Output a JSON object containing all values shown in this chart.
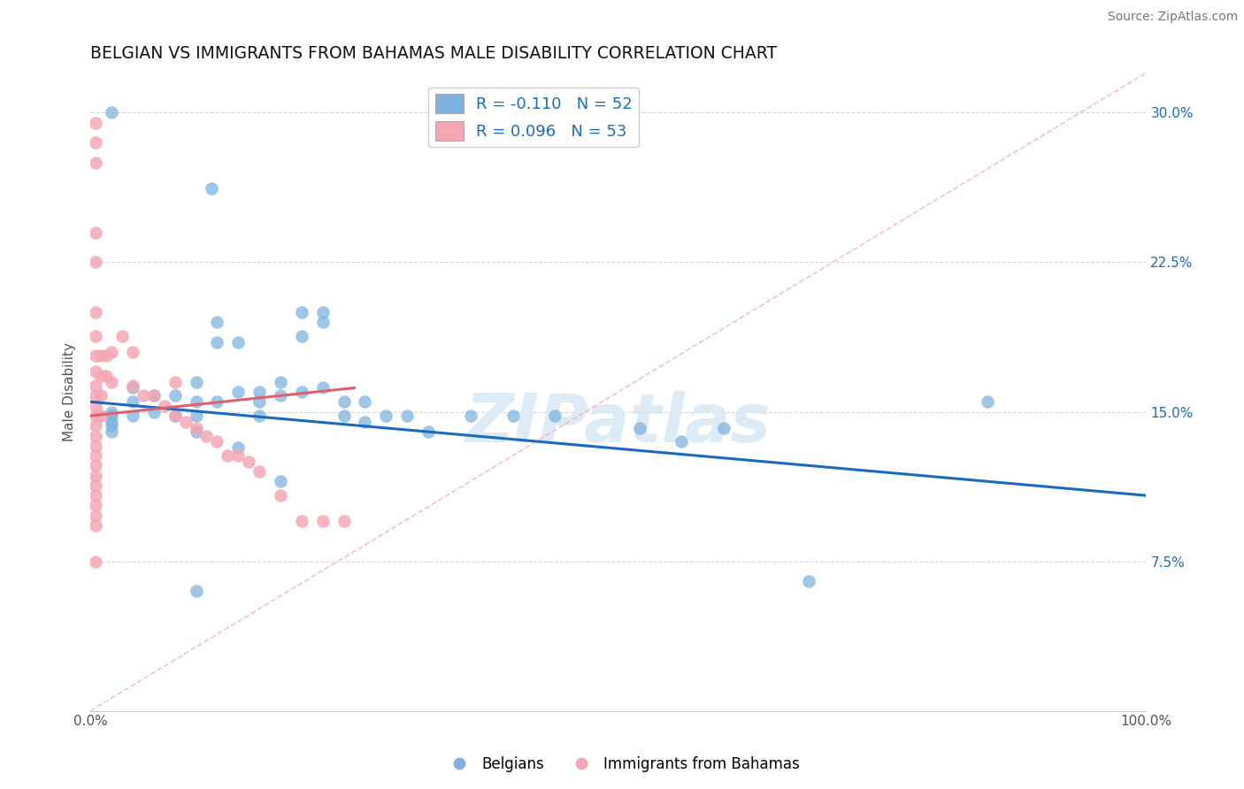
{
  "title": "BELGIAN VS IMMIGRANTS FROM BAHAMAS MALE DISABILITY CORRELATION CHART",
  "source": "Source: ZipAtlas.com",
  "ylabel": "Male Disability",
  "watermark": "ZIPatlas",
  "xlim": [
    0,
    1.0
  ],
  "ylim": [
    0.0,
    0.32
  ],
  "xticks": [
    0.0,
    0.25,
    0.5,
    0.75,
    1.0
  ],
  "xtick_labels": [
    "0.0%",
    "",
    "",
    "",
    "100.0%"
  ],
  "yticks": [
    0.075,
    0.15,
    0.225,
    0.3
  ],
  "ytick_labels": [
    "7.5%",
    "15.0%",
    "22.5%",
    "30.0%"
  ],
  "legend_r_blue": "R = -0.110",
  "legend_n_blue": "N = 52",
  "legend_r_pink": "R = 0.096",
  "legend_n_pink": "N = 53",
  "blue_color": "#7EB3E0",
  "pink_color": "#F4A7B3",
  "blue_line_color": "#1A6BBF",
  "pink_line_color": "#E06070",
  "dashed_line_color": "#F4A7B3",
  "background_color": "#FFFFFF",
  "grid_color": "#CCCCCC",
  "belgians_x": [
    0.02,
    0.115,
    0.22,
    0.02,
    0.02,
    0.02,
    0.02,
    0.02,
    0.04,
    0.04,
    0.04,
    0.06,
    0.06,
    0.08,
    0.08,
    0.1,
    0.1,
    0.1,
    0.1,
    0.12,
    0.12,
    0.12,
    0.14,
    0.14,
    0.16,
    0.16,
    0.16,
    0.18,
    0.18,
    0.2,
    0.2,
    0.2,
    0.22,
    0.22,
    0.24,
    0.24,
    0.26,
    0.26,
    0.28,
    0.3,
    0.32,
    0.36,
    0.4,
    0.44,
    0.52,
    0.56,
    0.6,
    0.68,
    0.85,
    0.1,
    0.14,
    0.18
  ],
  "belgians_y": [
    0.3,
    0.262,
    0.195,
    0.15,
    0.148,
    0.145,
    0.143,
    0.14,
    0.162,
    0.155,
    0.148,
    0.158,
    0.15,
    0.158,
    0.148,
    0.165,
    0.155,
    0.148,
    0.14,
    0.195,
    0.185,
    0.155,
    0.185,
    0.16,
    0.16,
    0.155,
    0.148,
    0.165,
    0.158,
    0.2,
    0.188,
    0.16,
    0.2,
    0.162,
    0.155,
    0.148,
    0.155,
    0.145,
    0.148,
    0.148,
    0.14,
    0.148,
    0.148,
    0.148,
    0.142,
    0.135,
    0.142,
    0.065,
    0.155,
    0.06,
    0.132,
    0.115
  ],
  "bahamas_x": [
    0.005,
    0.005,
    0.005,
    0.005,
    0.005,
    0.005,
    0.005,
    0.005,
    0.005,
    0.005,
    0.005,
    0.005,
    0.005,
    0.005,
    0.005,
    0.005,
    0.005,
    0.005,
    0.005,
    0.005,
    0.005,
    0.005,
    0.005,
    0.005,
    0.005,
    0.01,
    0.01,
    0.01,
    0.01,
    0.015,
    0.015,
    0.02,
    0.02,
    0.03,
    0.04,
    0.04,
    0.05,
    0.06,
    0.07,
    0.08,
    0.09,
    0.1,
    0.11,
    0.12,
    0.13,
    0.14,
    0.15,
    0.16,
    0.18,
    0.2,
    0.22,
    0.24,
    0.08
  ],
  "bahamas_y": [
    0.295,
    0.285,
    0.275,
    0.24,
    0.225,
    0.2,
    0.188,
    0.178,
    0.17,
    0.163,
    0.158,
    0.153,
    0.148,
    0.143,
    0.138,
    0.133,
    0.128,
    0.123,
    0.118,
    0.113,
    0.108,
    0.103,
    0.098,
    0.093,
    0.075,
    0.178,
    0.168,
    0.158,
    0.148,
    0.178,
    0.168,
    0.18,
    0.165,
    0.188,
    0.18,
    0.163,
    0.158,
    0.158,
    0.153,
    0.148,
    0.145,
    0.142,
    0.138,
    0.135,
    0.128,
    0.128,
    0.125,
    0.12,
    0.108,
    0.095,
    0.095,
    0.095,
    0.165
  ]
}
